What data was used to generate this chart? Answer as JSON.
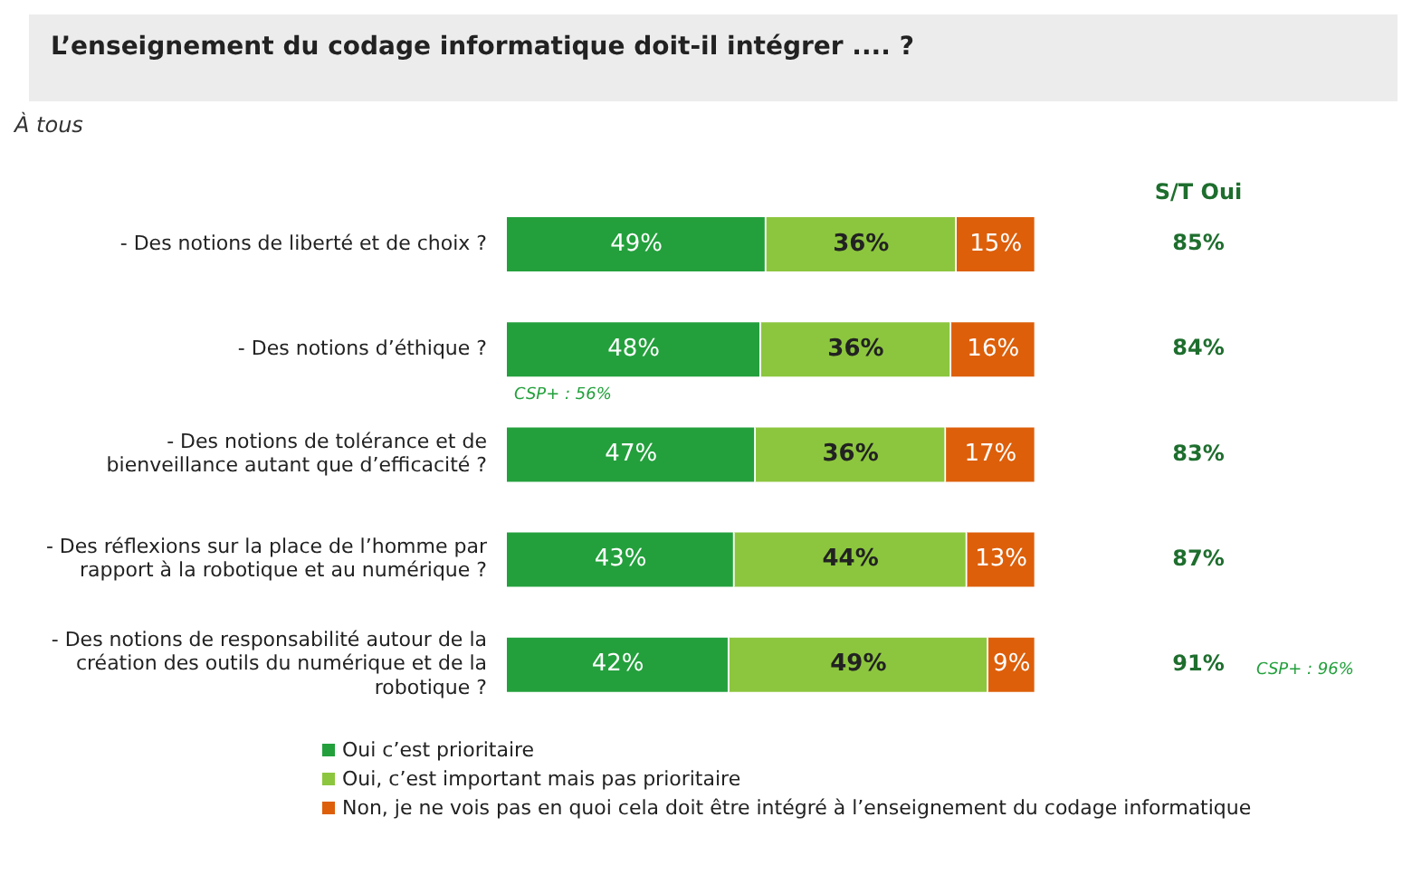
{
  "chart_data": {
    "type": "bar",
    "orientation": "horizontal",
    "stacked": true,
    "title": "L’enseignement du codage informatique doit-il intégrer .... ?",
    "subtitle": "À tous",
    "categories": [
      "- Des notions de liberté et de choix ?",
      "- Des notions d’éthique ?",
      "- Des notions de tolérance et de bienveillance autant que d’efficacité ?",
      "- Des réflexions sur la place de l’homme par rapport à la robotique et au numérique ?",
      "- Des notions de responsabilité autour de la création des outils du numérique et de la robotique ?"
    ],
    "series": [
      {
        "name": "Oui c’est prioritaire",
        "color": "#23a03c",
        "values": [
          49,
          48,
          47,
          43,
          42
        ],
        "value_labels": [
          "49%",
          "48%",
          "47%",
          "43%",
          "42%"
        ]
      },
      {
        "name": "Oui, c’est important mais pas prioritaire",
        "color": "#8cc63e",
        "values": [
          36,
          36,
          36,
          44,
          49
        ],
        "value_labels": [
          "36%",
          "36%",
          "36%",
          "44%",
          "49%"
        ]
      },
      {
        "name": "Non, je ne vois pas en quoi cela doit être intégré à l’enseignement du codage informatique",
        "color": "#dd5f0a",
        "values": [
          15,
          16,
          17,
          13,
          9
        ],
        "value_labels": [
          "15%",
          "16%",
          "17%",
          "13%",
          "9%"
        ]
      }
    ],
    "xlim": [
      0,
      100
    ],
    "annotations": [
      "S/T Oui",
      "85%",
      "84%",
      "83%",
      "87%",
      "91%",
      "CSP+ : 56%",
      "CSP+ : 96%"
    ],
    "grid": false,
    "legend": "bottom left"
  }
}
